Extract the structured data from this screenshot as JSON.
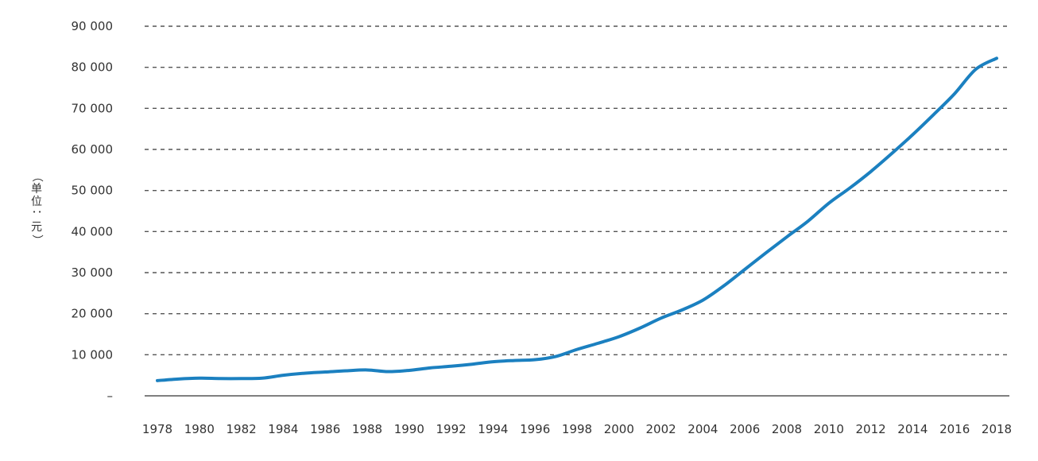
{
  "chart_data": {
    "type": "line",
    "title": "",
    "xlabel": "",
    "ylabel": "（单位：元）",
    "ylabel_chars": [
      "（",
      "单",
      "位",
      "：",
      "元",
      "）"
    ],
    "ylim": [
      0,
      90000
    ],
    "y_ticks": [
      0,
      10000,
      20000,
      30000,
      40000,
      50000,
      60000,
      70000,
      80000,
      90000
    ],
    "y_tick_labels": [
      "–",
      "10 000",
      "20 000",
      "30 000",
      "40 000",
      "50 000",
      "60 000",
      "70 000",
      "80 000",
      "90 000"
    ],
    "x_tick_labels": [
      "1978",
      "1980",
      "1982",
      "1984",
      "1986",
      "1988",
      "1990",
      "1992",
      "1994",
      "1996",
      "1998",
      "2000",
      "2002",
      "2004",
      "2006",
      "2008",
      "2010",
      "2012",
      "2014",
      "2016",
      "2018"
    ],
    "grid": "horizontal-dashed",
    "line_color": "#1b80c0",
    "series": [
      {
        "x": [
          1978,
          1979,
          1980,
          1981,
          1982,
          1983,
          1984,
          1985,
          1986,
          1987,
          1988,
          1989,
          1990,
          1991,
          1992,
          1993,
          1994,
          1995,
          1996,
          1997,
          1998,
          1999,
          2000,
          2001,
          2002,
          2003,
          2004,
          2005,
          2006,
          2007,
          2008,
          2009,
          2010,
          2011,
          2012,
          2013,
          2014,
          2015,
          2016,
          2017,
          2018
        ],
        "values": [
          3700,
          4100,
          4300,
          4200,
          4200,
          4300,
          5000,
          5500,
          5800,
          6100,
          6300,
          5900,
          6200,
          6800,
          7200,
          7700,
          8300,
          8600,
          8800,
          9600,
          11300,
          12800,
          14400,
          16500,
          18900,
          20900,
          23300,
          26800,
          30800,
          34800,
          38700,
          42500,
          46900,
          50600,
          54600,
          59000,
          63600,
          68500,
          73600,
          79500,
          82200
        ]
      }
    ]
  }
}
